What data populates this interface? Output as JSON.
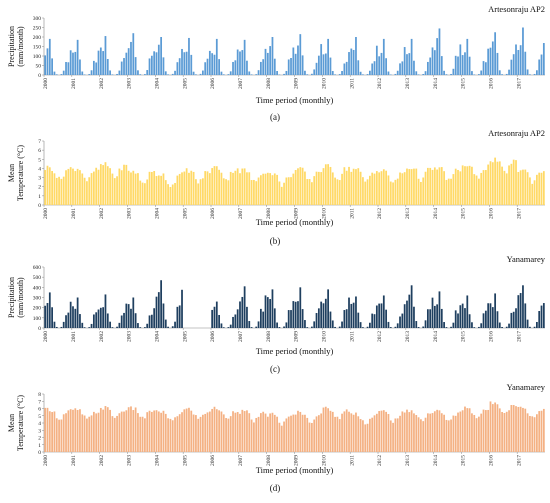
{
  "chart_data": [
    {
      "type": "bar",
      "panel_label": "(a)",
      "station": "Artesonraju AP2",
      "ylabel": [
        "Precipitation",
        "(mm/month)"
      ],
      "xlabel": "Time period (monthly)",
      "ylim": [
        0,
        300
      ],
      "yticks": [
        "0",
        "50",
        "100",
        "150",
        "200",
        "250",
        "300"
      ],
      "x_tick_labels": [
        "2000",
        "2001",
        "2002",
        "2003",
        "2004",
        "2005",
        "2006",
        "2007",
        "2008",
        "2009",
        "2010",
        "2011",
        "2012",
        "2013",
        "2014",
        "2015",
        "2016",
        "2017"
      ],
      "color": "#5b9bd5",
      "year_peaks": [
        190,
        185,
        205,
        220,
        200,
        195,
        190,
        185,
        200,
        215,
        190,
        200,
        190,
        190,
        245,
        190,
        225,
        250
      ],
      "seasonal_fraction": [
        0.72,
        0.8,
        1.0,
        0.55,
        0.12,
        0.02,
        0.0,
        0.03,
        0.14,
        0.42,
        0.5,
        0.78
      ]
    },
    {
      "type": "bar",
      "panel_label": "(b)",
      "station": "Artesonraju AP2",
      "ylabel": [
        "Mean",
        "Temperature (°C)"
      ],
      "xlabel": "Time period (monthly)",
      "ylim": [
        0,
        7
      ],
      "yticks": [
        "0",
        "1",
        "2",
        "3",
        "4",
        "5",
        "6",
        "7"
      ],
      "x_tick_labels": [
        "2000",
        "2001",
        "2002",
        "2003",
        "2004",
        "2005",
        "2006",
        "2007",
        "2008",
        "2009",
        "2010",
        "2011",
        "2012",
        "2013",
        "2014",
        "2015",
        "2016",
        "2017"
      ],
      "color": "#ffd966",
      "year_means": [
        3.6,
        3.5,
        3.9,
        3.2,
        2.9,
        3.3,
        3.6,
        3.3,
        3.0,
        3.4,
        3.7,
        3.4,
        3.2,
        3.6,
        3.5,
        3.8,
        4.4,
        3.4
      ],
      "seasonal_offset": [
        0.4,
        0.5,
        0.5,
        0.4,
        0.1,
        -0.5,
        -0.8,
        -0.7,
        -0.2,
        0.2,
        0.3,
        0.4
      ]
    },
    {
      "type": "bar",
      "panel_label": "(c)",
      "station": "Yanamarey",
      "ylabel": [
        "Precipitation",
        "(mm/month)"
      ],
      "xlabel": "Time period (monthly)",
      "ylim": [
        0,
        600
      ],
      "yticks": [
        "0",
        "100",
        "200",
        "300",
        "400",
        "500",
        "600"
      ],
      "x_tick_labels": [
        "2000",
        "2001",
        "2002",
        "2003",
        "2004",
        "2005",
        "2006",
        "2007",
        "2008",
        "2009",
        "2010",
        "2011",
        "2012",
        "2013",
        "2014",
        "2015",
        "2016",
        "2017"
      ],
      "color": "#1f3f5f",
      "year_peaks": [
        350,
        300,
        330,
        300,
        470,
        0,
        260,
        410,
        380,
        400,
        380,
        310,
        320,
        420,
        360,
        320,
        340,
        420
      ],
      "seasonal_fraction": [
        0.8,
        0.85,
        1.0,
        0.6,
        0.2,
        0.03,
        0.0,
        0.04,
        0.18,
        0.5,
        0.55,
        0.8
      ]
    },
    {
      "type": "bar",
      "panel_label": "(d)",
      "station": "Yanamarey",
      "ylabel": [
        "Mean",
        "Temperature (°C)"
      ],
      "xlabel": "Time period (monthly)",
      "ylim": [
        0,
        8
      ],
      "yticks": [
        "0",
        "1",
        "2",
        "3",
        "4",
        "5",
        "6",
        "7",
        "8"
      ],
      "x_tick_labels": [
        "2000",
        "2001",
        "2002",
        "2003",
        "2004",
        "2005",
        "2006",
        "2007",
        "2008",
        "2009",
        "2010",
        "2011",
        "2012",
        "2013",
        "2014",
        "2015",
        "2016",
        "2017"
      ],
      "color": "#f4b183",
      "year_means": [
        5.3,
        5.2,
        5.5,
        5.4,
        5.0,
        5.3,
        5.4,
        5.0,
        4.6,
        4.9,
        5.4,
        4.7,
        5.0,
        5.1,
        5.0,
        5.5,
        6.2,
        5.5
      ],
      "seasonal_offset": [
        0.5,
        0.6,
        0.6,
        0.5,
        0.1,
        -0.4,
        -0.7,
        -0.6,
        -0.2,
        0.1,
        0.3,
        0.4
      ]
    }
  ]
}
